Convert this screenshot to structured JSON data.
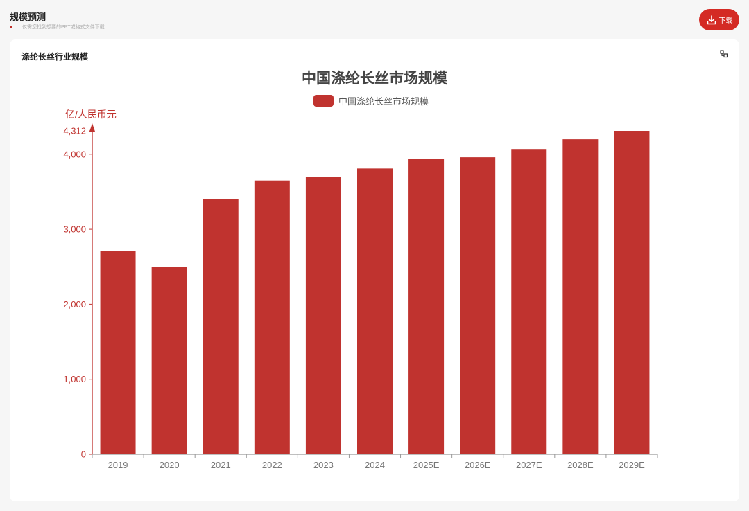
{
  "header": {
    "title": "规模预测",
    "subtitle": "仅需您找到想要的PPT或格式文件下载"
  },
  "download_label": "下载",
  "card_title": "涤纶长丝行业规模",
  "accent_color": "#c0332f",
  "chart_data": {
    "type": "bar",
    "title": "中国涤纶长丝市场规模",
    "ylabel": "亿/人民币元",
    "xlabel": "",
    "categories": [
      "2019",
      "2020",
      "2021",
      "2022",
      "2023",
      "2024",
      "2025E",
      "2026E",
      "2027E",
      "2028E",
      "2029E"
    ],
    "series": [
      {
        "name": "中国涤纶长丝市场规模",
        "values": [
          2710,
          2500,
          3400,
          3650,
          3700,
          3810,
          3940,
          3960,
          4070,
          4200,
          4312
        ]
      }
    ],
    "ylim": [
      0,
      4312
    ],
    "yticks": [
      0,
      1000,
      2000,
      3000,
      4000,
      4312
    ],
    "ytick_labels": [
      "0",
      "1,000",
      "2,000",
      "3,000",
      "4,000",
      "4,312"
    ],
    "legend": "top-center",
    "grid": false
  }
}
